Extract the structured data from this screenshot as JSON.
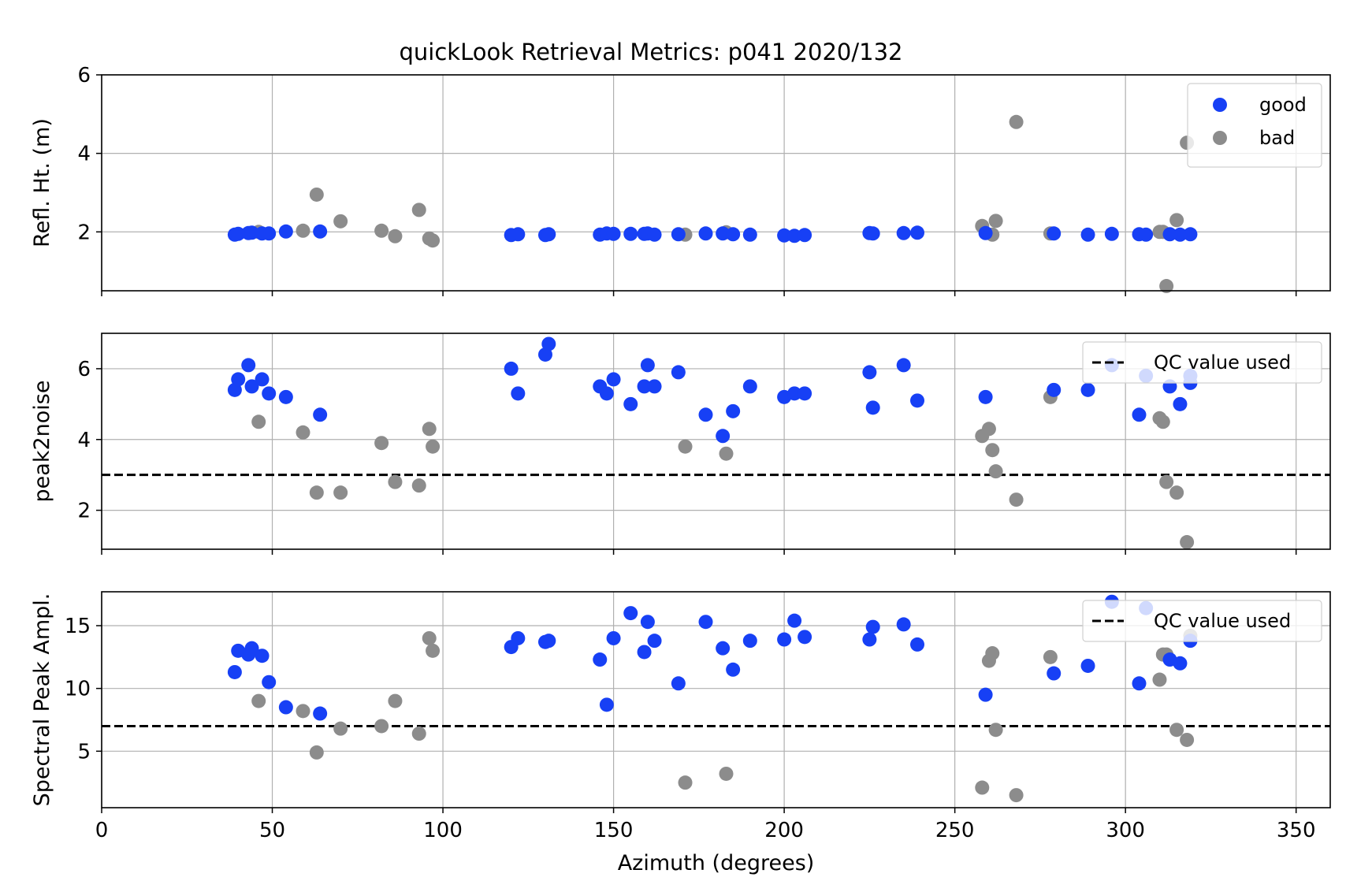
{
  "chart_data": [
    {
      "type": "scatter",
      "title": "quickLook Retrieval Metrics: p041 2020/132",
      "xlabel": "",
      "ylabel": "Refl. Ht. (m)",
      "xlim": [
        0,
        360
      ],
      "ylim": [
        0.5,
        6
      ],
      "xticks": [
        0,
        50,
        100,
        150,
        200,
        250,
        300,
        350
      ],
      "yticks": [
        2,
        4,
        6
      ],
      "x_tick_labels_shown": false,
      "grid": true,
      "legend": {
        "placement": "top-right",
        "entries": [
          "good",
          "bad"
        ]
      },
      "series": [
        {
          "name": "good",
          "color": "#1740f5",
          "points": [
            [
              39,
              1.93
            ],
            [
              40,
              1.95
            ],
            [
              43,
              1.97
            ],
            [
              44,
              1.98
            ],
            [
              47,
              1.96
            ],
            [
              49,
              1.96
            ],
            [
              54,
              2.01
            ],
            [
              64,
              2.01
            ],
            [
              120,
              1.92
            ],
            [
              122,
              1.94
            ],
            [
              130,
              1.92
            ],
            [
              131,
              1.94
            ],
            [
              146,
              1.93
            ],
            [
              148,
              1.96
            ],
            [
              150,
              1.95
            ],
            [
              155,
              1.95
            ],
            [
              159,
              1.95
            ],
            [
              160,
              1.96
            ],
            [
              162,
              1.93
            ],
            [
              169,
              1.94
            ],
            [
              177,
              1.96
            ],
            [
              182,
              1.96
            ],
            [
              185,
              1.94
            ],
            [
              190,
              1.93
            ],
            [
              200,
              1.91
            ],
            [
              203,
              1.9
            ],
            [
              206,
              1.92
            ],
            [
              225,
              1.97
            ],
            [
              226,
              1.96
            ],
            [
              235,
              1.97
            ],
            [
              239,
              1.98
            ],
            [
              259,
              1.97
            ],
            [
              279,
              1.96
            ],
            [
              289,
              1.93
            ],
            [
              296,
              1.95
            ],
            [
              304,
              1.94
            ],
            [
              306,
              1.93
            ],
            [
              313,
              1.94
            ],
            [
              316,
              1.93
            ],
            [
              319,
              1.94
            ]
          ]
        },
        {
          "name": "bad",
          "color": "#8c8c8c",
          "points": [
            [
              46,
              2.0
            ],
            [
              59,
              2.03
            ],
            [
              63,
              2.95
            ],
            [
              70,
              2.27
            ],
            [
              82,
              2.03
            ],
            [
              86,
              1.89
            ],
            [
              93,
              2.56
            ],
            [
              96,
              1.83
            ],
            [
              97,
              1.78
            ],
            [
              171,
              1.93
            ],
            [
              183,
              1.99
            ],
            [
              258,
              2.15
            ],
            [
              261,
              1.93
            ],
            [
              262,
              2.28
            ],
            [
              268,
              4.8
            ],
            [
              278,
              1.96
            ],
            [
              310,
              2.0
            ],
            [
              311,
              2.0
            ],
            [
              312,
              0.62
            ],
            [
              315,
              2.3
            ],
            [
              318,
              4.27
            ]
          ]
        }
      ]
    },
    {
      "type": "scatter",
      "title": "",
      "xlabel": "",
      "ylabel": "peak2noise",
      "xlim": [
        0,
        360
      ],
      "ylim": [
        0.9,
        7
      ],
      "xticks": [
        0,
        50,
        100,
        150,
        200,
        250,
        300,
        350
      ],
      "yticks": [
        2,
        4,
        6
      ],
      "x_tick_labels_shown": false,
      "grid": true,
      "reference_line": {
        "label": "QC value used",
        "y": 3.0,
        "style": "dashed",
        "color": "#000000"
      },
      "legend": {
        "placement": "top-right",
        "entries": [
          "QC value used"
        ]
      },
      "series": [
        {
          "name": "good",
          "color": "#1740f5",
          "points": [
            [
              39,
              5.4
            ],
            [
              40,
              5.7
            ],
            [
              43,
              6.1
            ],
            [
              44,
              5.5
            ],
            [
              47,
              5.7
            ],
            [
              49,
              5.3
            ],
            [
              54,
              5.2
            ],
            [
              64,
              4.7
            ],
            [
              120,
              6.0
            ],
            [
              122,
              5.3
            ],
            [
              130,
              6.4
            ],
            [
              131,
              6.7
            ],
            [
              146,
              5.5
            ],
            [
              148,
              5.3
            ],
            [
              150,
              5.7
            ],
            [
              155,
              5.0
            ],
            [
              159,
              5.5
            ],
            [
              160,
              6.1
            ],
            [
              162,
              5.5
            ],
            [
              169,
              5.9
            ],
            [
              177,
              4.7
            ],
            [
              182,
              4.1
            ],
            [
              185,
              4.8
            ],
            [
              190,
              5.5
            ],
            [
              200,
              5.2
            ],
            [
              203,
              5.3
            ],
            [
              206,
              5.3
            ],
            [
              225,
              5.9
            ],
            [
              226,
              4.9
            ],
            [
              235,
              6.1
            ],
            [
              239,
              5.1
            ],
            [
              259,
              5.2
            ],
            [
              279,
              5.4
            ],
            [
              289,
              5.4
            ],
            [
              296,
              6.1
            ],
            [
              304,
              4.7
            ],
            [
              306,
              5.8
            ],
            [
              313,
              5.5
            ],
            [
              316,
              5.0
            ],
            [
              319,
              5.8
            ],
            [
              319,
              5.6
            ]
          ]
        },
        {
          "name": "bad",
          "color": "#8c8c8c",
          "points": [
            [
              46,
              4.5
            ],
            [
              59,
              4.2
            ],
            [
              63,
              2.5
            ],
            [
              70,
              2.5
            ],
            [
              82,
              3.9
            ],
            [
              86,
              2.8
            ],
            [
              93,
              2.7
            ],
            [
              96,
              4.3
            ],
            [
              97,
              3.8
            ],
            [
              171,
              3.8
            ],
            [
              183,
              3.6
            ],
            [
              258,
              4.1
            ],
            [
              260,
              4.3
            ],
            [
              261,
              3.7
            ],
            [
              262,
              3.1
            ],
            [
              268,
              2.3
            ],
            [
              278,
              5.2
            ],
            [
              310,
              4.6
            ],
            [
              311,
              4.5
            ],
            [
              312,
              2.8
            ],
            [
              315,
              2.5
            ],
            [
              318,
              1.1
            ]
          ]
        }
      ]
    },
    {
      "type": "scatter",
      "title": "",
      "xlabel": "Azimuth (degrees)",
      "ylabel": "Spectral Peak Ampl.",
      "xlim": [
        0,
        360
      ],
      "ylim": [
        0.5,
        17.7
      ],
      "xticks": [
        0,
        50,
        100,
        150,
        200,
        250,
        300,
        350
      ],
      "yticks": [
        5,
        10,
        15
      ],
      "x_tick_labels_shown": true,
      "grid": true,
      "reference_line": {
        "label": "QC value used",
        "y": 7.0,
        "style": "dashed",
        "color": "#000000"
      },
      "legend": {
        "placement": "top-right",
        "entries": [
          "QC value used"
        ]
      },
      "series": [
        {
          "name": "good",
          "color": "#1740f5",
          "points": [
            [
              39,
              11.3
            ],
            [
              40,
              13.0
            ],
            [
              43,
              12.7
            ],
            [
              44,
              13.2
            ],
            [
              47,
              12.6
            ],
            [
              49,
              10.5
            ],
            [
              54,
              8.5
            ],
            [
              64,
              8.0
            ],
            [
              120,
              13.3
            ],
            [
              122,
              14.0
            ],
            [
              130,
              13.7
            ],
            [
              131,
              13.8
            ],
            [
              146,
              12.3
            ],
            [
              148,
              8.7
            ],
            [
              150,
              14.0
            ],
            [
              155,
              16.0
            ],
            [
              159,
              12.9
            ],
            [
              160,
              15.3
            ],
            [
              162,
              13.8
            ],
            [
              169,
              10.4
            ],
            [
              177,
              15.3
            ],
            [
              182,
              13.2
            ],
            [
              185,
              11.5
            ],
            [
              190,
              13.8
            ],
            [
              200,
              13.9
            ],
            [
              203,
              15.4
            ],
            [
              206,
              14.1
            ],
            [
              225,
              13.9
            ],
            [
              226,
              14.9
            ],
            [
              235,
              15.1
            ],
            [
              239,
              13.5
            ],
            [
              259,
              9.5
            ],
            [
              279,
              11.2
            ],
            [
              289,
              11.8
            ],
            [
              296,
              16.9
            ],
            [
              304,
              10.4
            ],
            [
              306,
              16.4
            ],
            [
              313,
              12.3
            ],
            [
              316,
              12.0
            ],
            [
              319,
              13.8
            ]
          ]
        },
        {
          "name": "bad",
          "color": "#8c8c8c",
          "points": [
            [
              46,
              9.0
            ],
            [
              59,
              8.2
            ],
            [
              63,
              4.9
            ],
            [
              70,
              6.8
            ],
            [
              82,
              7.0
            ],
            [
              86,
              9.0
            ],
            [
              93,
              6.4
            ],
            [
              96,
              14.0
            ],
            [
              97,
              13.0
            ],
            [
              171,
              2.5
            ],
            [
              183,
              3.2
            ],
            [
              258,
              2.1
            ],
            [
              260,
              12.2
            ],
            [
              261,
              12.8
            ],
            [
              262,
              6.7
            ],
            [
              268,
              1.5
            ],
            [
              278,
              12.5
            ],
            [
              310,
              10.7
            ],
            [
              311,
              12.7
            ],
            [
              312,
              12.7
            ],
            [
              315,
              6.7
            ],
            [
              318,
              5.9
            ],
            [
              319,
              14.2
            ]
          ]
        }
      ]
    }
  ]
}
